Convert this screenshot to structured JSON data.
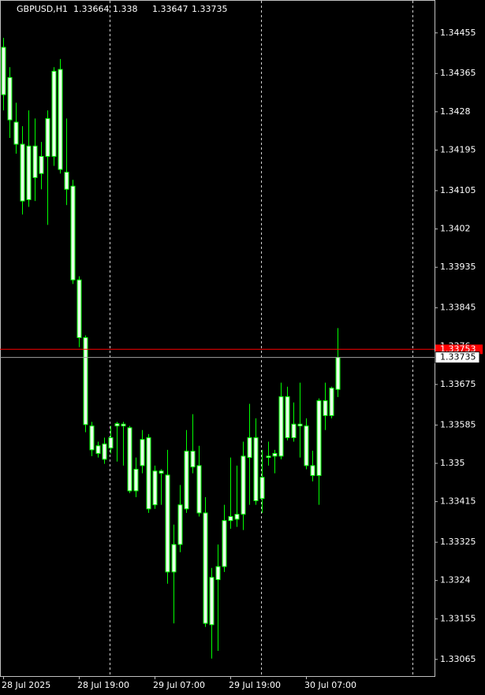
{
  "chart_data": {
    "type": "candlestick",
    "symbol": "GBPUSD,H1",
    "categories": [
      "28 Jul 2025",
      null,
      null,
      null,
      null,
      null,
      null,
      null,
      null,
      null,
      null,
      null,
      "28 Jul 19:00",
      null,
      null,
      null,
      null,
      null,
      null,
      null,
      null,
      null,
      null,
      null,
      "29 Jul 07:00",
      null,
      null,
      null,
      null,
      null,
      null,
      null,
      null,
      null,
      null,
      null,
      "29 Jul 19:00",
      null,
      null,
      null,
      null,
      null,
      null,
      null,
      null,
      null,
      null,
      null,
      "30 Jul 07:00",
      null,
      null,
      null,
      null,
      null
    ],
    "open": [
      1.34423,
      1.34356,
      1.34257,
      1.34208,
      1.34085,
      1.34204,
      1.34143,
      1.34181,
      1.34181,
      1.34374,
      1.34146,
      1.34115,
      1.33907,
      1.33779,
      1.33583,
      1.33522,
      1.33543,
      1.33534,
      1.33583,
      1.33587,
      1.33579,
      1.33439,
      1.33495,
      1.33557,
      1.33408,
      1.33483,
      1.33474,
      1.33259,
      1.3332,
      1.33399,
      1.33527,
      1.33495,
      1.3339,
      1.33142,
      1.33242,
      1.33271,
      1.33373,
      1.33376,
      1.33387,
      1.33513,
      1.33557,
      1.33422,
      1.33513,
      1.33516,
      1.33516,
      1.33648,
      1.33557,
      1.33587,
      1.33583,
      1.33495,
      1.33473,
      1.33606,
      1.33606,
      1.33664
    ],
    "high": [
      1.34444,
      1.34379,
      1.343,
      1.34248,
      1.34283,
      1.34265,
      1.34213,
      1.34283,
      1.34379,
      1.34397,
      1.34265,
      1.34129,
      1.33915,
      1.33784,
      1.33592,
      1.33548,
      1.33557,
      1.33583,
      1.33592,
      1.33592,
      1.33583,
      1.33513,
      1.33574,
      1.33565,
      1.33495,
      1.33487,
      1.3353,
      1.33364,
      1.33452,
      1.33574,
      1.33609,
      1.33539,
      1.33425,
      1.33268,
      1.3332,
      1.33408,
      1.33513,
      1.33495,
      1.33548,
      1.33632,
      1.336,
      1.3353,
      1.33548,
      1.3353,
      1.33679,
      1.3367,
      1.33635,
      1.33679,
      1.336,
      1.33528,
      1.33644,
      1.33679,
      1.3367,
      1.338
    ],
    "low": [
      1.34283,
      1.34222,
      1.34187,
      1.34052,
      1.34069,
      1.34082,
      1.34108,
      1.34029,
      1.3416,
      1.34143,
      1.34073,
      1.33898,
      1.33758,
      1.33569,
      1.33516,
      1.33513,
      1.33499,
      1.33522,
      1.33504,
      1.33495,
      1.33434,
      1.33425,
      1.33478,
      1.3339,
      1.33399,
      1.33408,
      1.33233,
      1.33145,
      1.33303,
      1.3339,
      1.33478,
      1.33382,
      1.33137,
      1.33067,
      1.33084,
      1.33259,
      1.33355,
      1.33359,
      1.33352,
      1.33408,
      1.33408,
      1.3339,
      1.33495,
      1.33478,
      1.33509,
      1.33551,
      1.33548,
      1.33513,
      1.33487,
      1.3346,
      1.33408,
      1.33574,
      1.336,
      1.33647
    ],
    "close": [
      1.34318,
      1.34262,
      1.34208,
      1.34082,
      1.34204,
      1.34134,
      1.34181,
      1.34265,
      1.3437,
      1.34152,
      1.34108,
      1.33907,
      1.33779,
      1.33586,
      1.3353,
      1.33539,
      1.33509,
      1.33557,
      1.33588,
      1.33583,
      1.33439,
      1.33487,
      1.33553,
      1.33399,
      1.33483,
      1.33478,
      1.33259,
      1.3332,
      1.33408,
      1.33527,
      1.33492,
      1.3339,
      1.33145,
      1.33247,
      1.33271,
      1.33373,
      1.33382,
      1.33387,
      1.33516,
      1.33557,
      1.33417,
      1.33469,
      1.33516,
      1.33522,
      1.33648,
      1.33557,
      1.33587,
      1.33583,
      1.33495,
      1.33473,
      1.33639,
      1.33639,
      1.33667,
      1.33735
    ],
    "ask": 1.33753,
    "color": "#00ff00",
    "body_color": "#eaffea",
    "ask_color": "#ff0000",
    "bid_color": "#a0a0a0",
    "ylim": [
      1.33028,
      1.34528
    ],
    "yticks": [
      1.34455,
      1.34365,
      1.3428,
      1.34195,
      1.34105,
      1.3402,
      1.33935,
      1.33845,
      1.3376,
      1.33675,
      1.33585,
      1.335,
      1.33415,
      1.33325,
      1.3324,
      1.33155,
      1.33065
    ]
  }
}
